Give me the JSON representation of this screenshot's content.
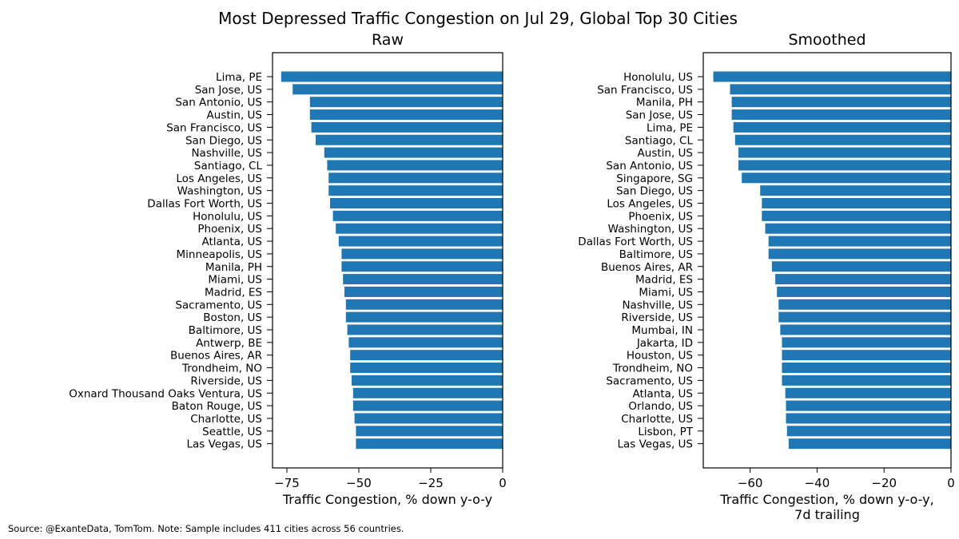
{
  "title": "Most Depressed Traffic Congestion on Jul 29, Global Top 30 Cities",
  "footnote": "Source: @ExanteData, TomTom.   Note: Sample includes 411 cities across 56 countries.",
  "bar_color": "#1f77b4",
  "chart_data": [
    {
      "type": "bar",
      "orientation": "horizontal",
      "title": "Raw",
      "xlabel": "Traffic Congestion, % down y-o-y",
      "xlabel_line2": "",
      "xlim": [
        -80,
        0
      ],
      "xticks": [
        -75,
        -50,
        -25,
        0
      ],
      "xtick_labels": [
        "−75",
        "−50",
        "−25",
        "0"
      ],
      "categories": [
        "Lima, PE",
        "San Jose, US",
        "San Antonio, US",
        "Austin, US",
        "San Francisco, US",
        "San Diego, US",
        "Nashville, US",
        "Santiago, CL",
        "Los Angeles, US",
        "Washington, US",
        "Dallas Fort Worth, US",
        "Honolulu, US",
        "Phoenix, US",
        "Atlanta, US",
        "Minneapolis, US",
        "Manila, PH",
        "Miami, US",
        "Madrid, ES",
        "Sacramento, US",
        "Boston, US",
        "Baltimore, US",
        "Antwerp, BE",
        "Buenos Aires, AR",
        "Trondheim, NO",
        "Riverside, US",
        "Oxnard Thousand Oaks Ventura, US",
        "Baton Rouge, US",
        "Charlotte, US",
        "Seattle, US",
        "Las Vegas, US"
      ],
      "values": [
        -77,
        -73,
        -67,
        -67,
        -66.5,
        -65,
        -62,
        -61,
        -60.5,
        -60.5,
        -60,
        -59,
        -58,
        -57,
        -56,
        -56,
        -55.5,
        -55,
        -54.5,
        -54.5,
        -54,
        -53.5,
        -53,
        -53,
        -52.5,
        -52,
        -52,
        -51.5,
        -51,
        -51
      ]
    },
    {
      "type": "bar",
      "orientation": "horizontal",
      "title": "Smoothed",
      "xlabel": "Traffic Congestion, % down y-o-y,",
      "xlabel_line2": "7d trailing",
      "xlim": [
        -74,
        0
      ],
      "xticks": [
        -60,
        -40,
        -20,
        0
      ],
      "xtick_labels": [
        "−60",
        "−40",
        "−20",
        "0"
      ],
      "categories": [
        "Honolulu, US",
        "San Francisco, US",
        "Manila, PH",
        "San Jose, US",
        "Lima, PE",
        "Santiago, CL",
        "Austin, US",
        "San Antonio, US",
        "Singapore, SG",
        "San Diego, US",
        "Los Angeles, US",
        "Phoenix, US",
        "Washington, US",
        "Dallas Fort Worth, US",
        "Baltimore, US",
        "Buenos Aires, AR",
        "Madrid, ES",
        "Miami, US",
        "Nashville, US",
        "Riverside, US",
        "Mumbai, IN",
        "Jakarta, ID",
        "Houston, US",
        "Trondheim, NO",
        "Sacramento, US",
        "Atlanta, US",
        "Orlando, US",
        "Charlotte, US",
        "Lisbon, PT",
        "Las Vegas, US"
      ],
      "values": [
        -71,
        -66,
        -65.5,
        -65.5,
        -65,
        -64.5,
        -63.5,
        -63.5,
        -62.5,
        -57,
        -56.5,
        -56.5,
        -55.5,
        -54.5,
        -54.5,
        -53.5,
        -52.5,
        -52,
        -51.5,
        -51.5,
        -51,
        -50.5,
        -50.5,
        -50.5,
        -50.5,
        -49.5,
        -49.3,
        -49.3,
        -49,
        -48.5
      ]
    }
  ]
}
